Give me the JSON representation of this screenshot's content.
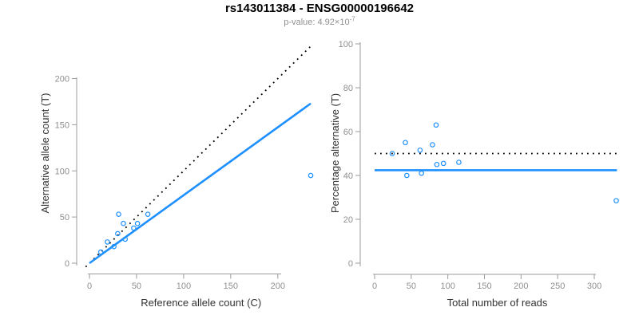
{
  "header": {
    "title": "rs143011384 - ENSG00000196642",
    "subtitle_prefix": "p-value: 4.92×10",
    "subtitle_exponent": "-7"
  },
  "colors": {
    "accent_blue": "#1E90FF",
    "identity_black": "#000000",
    "axis_line": "#9b9b9b",
    "tick_label": "#8f8f8f",
    "axis_label": "#333333",
    "title": "#000000",
    "subtitle": "#8f8f8f",
    "background": "#ffffff"
  },
  "chart_data": [
    {
      "type": "scatter",
      "panel": "allele-counts",
      "xlabel": "Reference allele count (C)",
      "ylabel": "Alternative allele count (T)",
      "xticks": [
        0,
        50,
        100,
        150,
        200
      ],
      "yticks": [
        0,
        50,
        100,
        150,
        200
      ],
      "xlim": [
        0,
        237
      ],
      "ylim": [
        0,
        200
      ],
      "grid": false,
      "legend": "none",
      "points": [
        [
          12,
          12
        ],
        [
          19,
          23
        ],
        [
          26,
          18
        ],
        [
          30,
          32
        ],
        [
          31,
          53
        ],
        [
          36,
          43
        ],
        [
          38,
          26
        ],
        [
          47,
          38
        ],
        [
          51,
          43
        ],
        [
          62,
          53
        ],
        [
          235,
          95
        ]
      ],
      "lines": [
        {
          "name": "identity-line",
          "style": "dotted",
          "color": "black",
          "x1": -4,
          "y1": -4,
          "x2": 235,
          "y2": 235
        },
        {
          "name": "fit-line",
          "style": "solid",
          "color": "blue",
          "x1": 0,
          "y1": 0,
          "x2": 235,
          "y2": 173
        }
      ]
    },
    {
      "type": "scatter",
      "panel": "percentage-alternative",
      "xlabel": "Total number of reads",
      "ylabel": "Percentage alternative (T)",
      "xticks": [
        0,
        50,
        100,
        150,
        200,
        250,
        300
      ],
      "yticks": [
        0,
        20,
        40,
        60,
        80,
        100
      ],
      "xlim": [
        0,
        335
      ],
      "ylim": [
        0,
        100
      ],
      "grid": false,
      "legend": "none",
      "points": [
        [
          24,
          50
        ],
        [
          42,
          55
        ],
        [
          44,
          40
        ],
        [
          62,
          51.5
        ],
        [
          64,
          41
        ],
        [
          79,
          54
        ],
        [
          84,
          63
        ],
        [
          85,
          45
        ],
        [
          94,
          45.5
        ],
        [
          115,
          46
        ],
        [
          330,
          28.5
        ]
      ],
      "lines": [
        {
          "name": "expected-50pct-line",
          "style": "dotted",
          "color": "black",
          "x1": 0,
          "y1": 50,
          "x2": 331,
          "y2": 50
        },
        {
          "name": "mean-percentage-line",
          "style": "solid",
          "color": "blue",
          "x1": 0,
          "y1": 42.4,
          "x2": 331,
          "y2": 42.4
        }
      ]
    }
  ]
}
